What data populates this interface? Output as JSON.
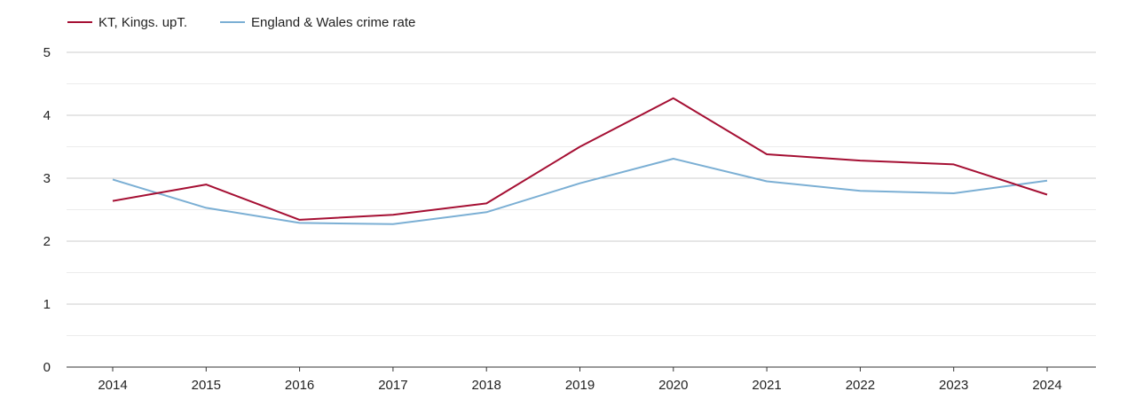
{
  "chart_data": {
    "type": "line",
    "title": "",
    "xlabel": "",
    "ylabel": "",
    "x": [
      "2014",
      "2015",
      "2016",
      "2017",
      "2018",
      "2019",
      "2020",
      "2021",
      "2022",
      "2023",
      "2024"
    ],
    "ylim": [
      0,
      5
    ],
    "yticks": [
      "0",
      "1",
      "2",
      "3",
      "4",
      "5"
    ],
    "grid": true,
    "legend_position": "top-left",
    "series": [
      {
        "name": "KT, Kings. upT.",
        "color": "#a50f33",
        "values": [
          2.64,
          2.9,
          2.34,
          2.42,
          2.6,
          3.5,
          4.27,
          3.38,
          3.28,
          3.22,
          2.74
        ]
      },
      {
        "name": "England & Wales crime rate",
        "color": "#7bafd4",
        "values": [
          2.98,
          2.53,
          2.29,
          2.27,
          2.46,
          2.92,
          3.31,
          2.95,
          2.8,
          2.76,
          2.96
        ]
      }
    ]
  }
}
